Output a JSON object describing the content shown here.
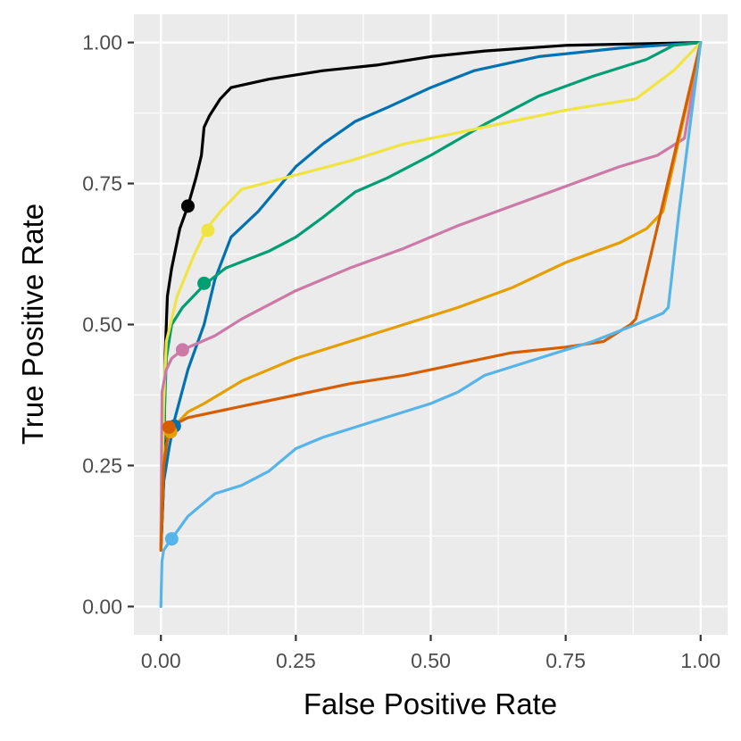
{
  "chart_data": {
    "type": "line",
    "title": "",
    "xlabel": "False Positive Rate",
    "ylabel": "True Positive Rate",
    "xlim": [
      -0.05,
      1.05
    ],
    "ylim": [
      -0.05,
      1.05
    ],
    "x_ticks": [
      0,
      0.25,
      0.5,
      0.75,
      1
    ],
    "x_tick_labels": [
      "0.00",
      "0.25",
      "0.50",
      "0.75",
      "1.00"
    ],
    "y_ticks": [
      0,
      0.25,
      0.5,
      0.75,
      1
    ],
    "y_tick_labels": [
      "0.00",
      "0.25",
      "0.50",
      "0.75",
      "1.00"
    ],
    "grid": true,
    "legend": "none",
    "series": [
      {
        "name": "black",
        "color": "#000000",
        "points": [
          [
            0,
            0.1
          ],
          [
            0.005,
            0.22
          ],
          [
            0.008,
            0.45
          ],
          [
            0.012,
            0.55
          ],
          [
            0.02,
            0.6
          ],
          [
            0.035,
            0.67
          ],
          [
            0.05,
            0.71
          ],
          [
            0.065,
            0.76
          ],
          [
            0.075,
            0.8
          ],
          [
            0.08,
            0.85
          ],
          [
            0.09,
            0.87
          ],
          [
            0.11,
            0.9
          ],
          [
            0.13,
            0.92
          ],
          [
            0.2,
            0.935
          ],
          [
            0.3,
            0.95
          ],
          [
            0.4,
            0.96
          ],
          [
            0.5,
            0.975
          ],
          [
            0.6,
            0.985
          ],
          [
            0.75,
            0.995
          ],
          [
            1,
            1
          ]
        ],
        "marker": [
          0.05,
          0.71
        ]
      },
      {
        "name": "blue",
        "color": "#0072B2",
        "points": [
          [
            0,
            0.1
          ],
          [
            0.005,
            0.22
          ],
          [
            0.015,
            0.28
          ],
          [
            0.025,
            0.33
          ],
          [
            0.05,
            0.42
          ],
          [
            0.08,
            0.5
          ],
          [
            0.1,
            0.58
          ],
          [
            0.13,
            0.655
          ],
          [
            0.18,
            0.7
          ],
          [
            0.25,
            0.78
          ],
          [
            0.3,
            0.82
          ],
          [
            0.36,
            0.86
          ],
          [
            0.42,
            0.885
          ],
          [
            0.5,
            0.92
          ],
          [
            0.58,
            0.95
          ],
          [
            0.7,
            0.975
          ],
          [
            0.85,
            0.99
          ],
          [
            1,
            1
          ]
        ],
        "marker": [
          0.025,
          0.32
        ]
      },
      {
        "name": "green",
        "color": "#009E73",
        "points": [
          [
            0,
            0.1
          ],
          [
            0.005,
            0.3
          ],
          [
            0.01,
            0.44
          ],
          [
            0.02,
            0.5
          ],
          [
            0.04,
            0.53
          ],
          [
            0.08,
            0.57
          ],
          [
            0.12,
            0.6
          ],
          [
            0.2,
            0.63
          ],
          [
            0.25,
            0.655
          ],
          [
            0.3,
            0.69
          ],
          [
            0.36,
            0.735
          ],
          [
            0.42,
            0.76
          ],
          [
            0.5,
            0.8
          ],
          [
            0.6,
            0.855
          ],
          [
            0.7,
            0.905
          ],
          [
            0.8,
            0.94
          ],
          [
            0.9,
            0.97
          ],
          [
            0.95,
            0.995
          ],
          [
            1,
            1
          ]
        ],
        "marker": [
          0.08,
          0.573
        ]
      },
      {
        "name": "yellow",
        "color": "#F0E442",
        "points": [
          [
            0,
            0.1
          ],
          [
            0.005,
            0.36
          ],
          [
            0.01,
            0.47
          ],
          [
            0.03,
            0.55
          ],
          [
            0.06,
            0.62
          ],
          [
            0.085,
            0.67
          ],
          [
            0.11,
            0.7
          ],
          [
            0.15,
            0.74
          ],
          [
            0.25,
            0.765
          ],
          [
            0.35,
            0.79
          ],
          [
            0.45,
            0.82
          ],
          [
            0.55,
            0.84
          ],
          [
            0.65,
            0.86
          ],
          [
            0.75,
            0.88
          ],
          [
            0.88,
            0.9
          ],
          [
            0.95,
            0.95
          ],
          [
            1,
            1
          ]
        ],
        "marker": [
          0.087,
          0.667
        ]
      },
      {
        "name": "pink",
        "color": "#CC79A7",
        "points": [
          [
            0,
            0.1
          ],
          [
            0.002,
            0.38
          ],
          [
            0.01,
            0.42
          ],
          [
            0.02,
            0.44
          ],
          [
            0.04,
            0.455
          ],
          [
            0.1,
            0.48
          ],
          [
            0.15,
            0.51
          ],
          [
            0.25,
            0.56
          ],
          [
            0.35,
            0.6
          ],
          [
            0.45,
            0.635
          ],
          [
            0.55,
            0.675
          ],
          [
            0.65,
            0.71
          ],
          [
            0.75,
            0.745
          ],
          [
            0.85,
            0.78
          ],
          [
            0.92,
            0.8
          ],
          [
            0.97,
            0.83
          ],
          [
            1,
            1
          ]
        ],
        "marker": [
          0.04,
          0.455
        ]
      },
      {
        "name": "orange",
        "color": "#E69F00",
        "points": [
          [
            0,
            0.1
          ],
          [
            0.005,
            0.26
          ],
          [
            0.015,
            0.31
          ],
          [
            0.05,
            0.345
          ],
          [
            0.08,
            0.36
          ],
          [
            0.15,
            0.4
          ],
          [
            0.25,
            0.44
          ],
          [
            0.35,
            0.47
          ],
          [
            0.45,
            0.5
          ],
          [
            0.55,
            0.53
          ],
          [
            0.65,
            0.565
          ],
          [
            0.75,
            0.61
          ],
          [
            0.85,
            0.645
          ],
          [
            0.9,
            0.67
          ],
          [
            0.93,
            0.7
          ],
          [
            1,
            1
          ]
        ],
        "marker": [
          0.018,
          0.31
        ]
      },
      {
        "name": "vermillion",
        "color": "#D55E00",
        "points": [
          [
            0,
            0.1
          ],
          [
            0.005,
            0.25
          ],
          [
            0.015,
            0.318
          ],
          [
            0.05,
            0.335
          ],
          [
            0.15,
            0.355
          ],
          [
            0.25,
            0.375
          ],
          [
            0.35,
            0.395
          ],
          [
            0.45,
            0.41
          ],
          [
            0.55,
            0.43
          ],
          [
            0.65,
            0.45
          ],
          [
            0.75,
            0.46
          ],
          [
            0.82,
            0.47
          ],
          [
            0.87,
            0.5
          ],
          [
            0.88,
            0.51
          ],
          [
            1,
            1
          ]
        ],
        "marker": [
          0.015,
          0.318
        ]
      },
      {
        "name": "sky",
        "color": "#56B4E9",
        "points": [
          [
            0,
            0
          ],
          [
            0.002,
            0.08
          ],
          [
            0.005,
            0.1
          ],
          [
            0.02,
            0.12
          ],
          [
            0.05,
            0.16
          ],
          [
            0.1,
            0.2
          ],
          [
            0.15,
            0.215
          ],
          [
            0.2,
            0.24
          ],
          [
            0.25,
            0.28
          ],
          [
            0.3,
            0.3
          ],
          [
            0.35,
            0.315
          ],
          [
            0.4,
            0.33
          ],
          [
            0.5,
            0.36
          ],
          [
            0.55,
            0.38
          ],
          [
            0.6,
            0.41
          ],
          [
            0.7,
            0.44
          ],
          [
            0.8,
            0.47
          ],
          [
            0.88,
            0.5
          ],
          [
            0.93,
            0.52
          ],
          [
            0.94,
            0.53
          ],
          [
            0.96,
            0.7
          ],
          [
            1,
            1
          ]
        ],
        "marker": [
          0.02,
          0.12
        ]
      }
    ]
  }
}
